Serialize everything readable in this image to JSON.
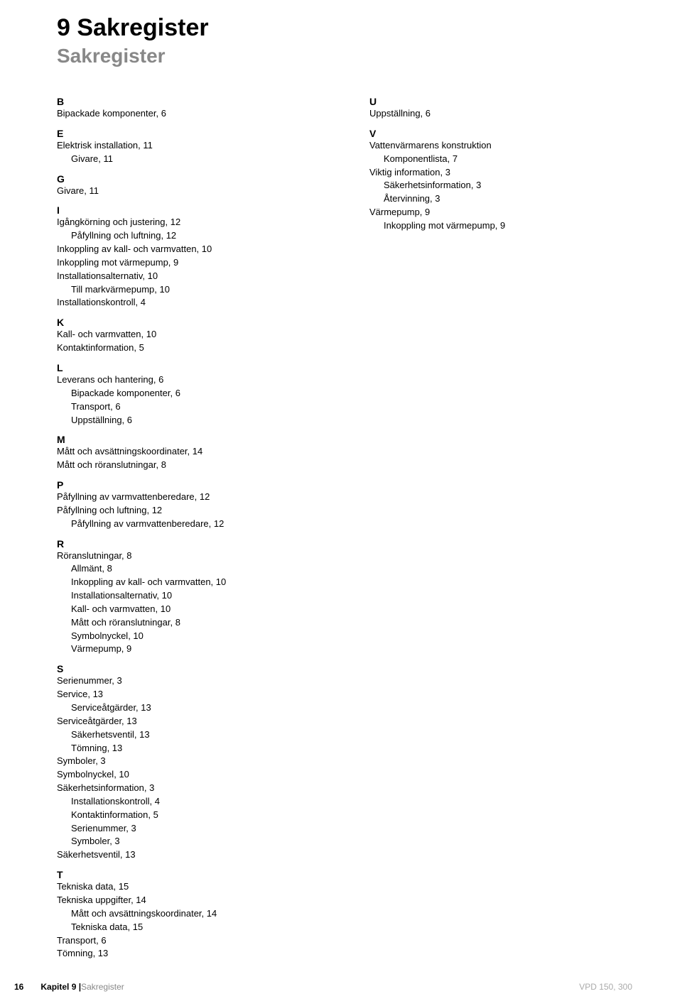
{
  "title": "9  Sakregister",
  "subtitle": "Sakregister",
  "footer": {
    "page_number": "16",
    "chapter": "Kapitel 9 | ",
    "section": "Sakregister",
    "model": "VPD 150, 300"
  },
  "columns": [
    {
      "groups": [
        {
          "letter": "B",
          "entries": [
            {
              "text": "Bipackade komponenter, 6"
            }
          ]
        },
        {
          "letter": "E",
          "entries": [
            {
              "text": "Elektrisk installation, 11"
            },
            {
              "text": "Givare, 11",
              "sub": true
            }
          ]
        },
        {
          "letter": "G",
          "entries": [
            {
              "text": "Givare, 11"
            }
          ]
        },
        {
          "letter": "I",
          "entries": [
            {
              "text": "Igångkörning och justering, 12"
            },
            {
              "text": "Påfyllning och luftning, 12",
              "sub": true
            },
            {
              "text": "Inkoppling av kall- och varmvatten, 10"
            },
            {
              "text": "Inkoppling mot värmepump, 9"
            },
            {
              "text": "Installationsalternativ, 10"
            },
            {
              "text": "Till markvärmepump, 10",
              "sub": true
            },
            {
              "text": "Installationskontroll, 4"
            }
          ]
        },
        {
          "letter": "K",
          "entries": [
            {
              "text": "Kall- och varmvatten, 10"
            },
            {
              "text": "Kontaktinformation, 5"
            }
          ]
        },
        {
          "letter": "L",
          "entries": [
            {
              "text": "Leverans och hantering, 6"
            },
            {
              "text": "Bipackade komponenter, 6",
              "sub": true
            },
            {
              "text": "Transport, 6",
              "sub": true
            },
            {
              "text": "Uppställning, 6",
              "sub": true
            }
          ]
        },
        {
          "letter": "M",
          "entries": [
            {
              "text": "Mått och avsättningskoordinater, 14"
            },
            {
              "text": "Mått och röranslutningar, 8"
            }
          ]
        },
        {
          "letter": "P",
          "entries": [
            {
              "text": "Påfyllning av varmvattenberedare, 12"
            },
            {
              "text": "Påfyllning och luftning, 12"
            },
            {
              "text": "Påfyllning av varmvattenberedare, 12",
              "sub": true
            }
          ]
        },
        {
          "letter": "R",
          "entries": [
            {
              "text": "Röranslutningar, 8"
            },
            {
              "text": "Allmänt, 8",
              "sub": true
            },
            {
              "text": "Inkoppling av kall- och varmvatten, 10",
              "sub": true
            },
            {
              "text": "Installationsalternativ, 10",
              "sub": true
            },
            {
              "text": "Kall- och varmvatten, 10",
              "sub": true
            },
            {
              "text": "Mått och röranslutningar, 8",
              "sub": true
            },
            {
              "text": "Symbolnyckel, 10",
              "sub": true
            },
            {
              "text": "Värmepump, 9",
              "sub": true
            }
          ]
        },
        {
          "letter": "S",
          "entries": [
            {
              "text": "Serienummer, 3"
            },
            {
              "text": "Service, 13"
            },
            {
              "text": "Serviceåtgärder, 13",
              "sub": true
            },
            {
              "text": "Serviceåtgärder, 13"
            },
            {
              "text": "Säkerhetsventil, 13",
              "sub": true
            },
            {
              "text": "Tömning, 13",
              "sub": true
            },
            {
              "text": "Symboler, 3"
            },
            {
              "text": "Symbolnyckel, 10"
            },
            {
              "text": "Säkerhetsinformation, 3"
            },
            {
              "text": "Installationskontroll, 4",
              "sub": true
            },
            {
              "text": "Kontaktinformation, 5",
              "sub": true
            },
            {
              "text": "Serienummer, 3",
              "sub": true
            },
            {
              "text": "Symboler, 3",
              "sub": true
            },
            {
              "text": "Säkerhetsventil, 13"
            }
          ]
        },
        {
          "letter": "T",
          "entries": [
            {
              "text": "Tekniska data, 15"
            },
            {
              "text": "Tekniska uppgifter, 14"
            },
            {
              "text": "Mått och avsättningskoordinater, 14",
              "sub": true
            },
            {
              "text": "Tekniska data, 15",
              "sub": true
            },
            {
              "text": "Transport, 6"
            },
            {
              "text": "Tömning, 13"
            }
          ]
        }
      ]
    },
    {
      "groups": [
        {
          "letter": "U",
          "entries": [
            {
              "text": "Uppställning, 6"
            }
          ]
        },
        {
          "letter": "V",
          "entries": [
            {
              "text": "Vattenvärmarens konstruktion"
            },
            {
              "text": "Komponentlista, 7",
              "sub": true
            },
            {
              "text": "Viktig information, 3"
            },
            {
              "text": "Säkerhetsinformation, 3",
              "sub": true
            },
            {
              "text": "Återvinning, 3",
              "sub": true
            },
            {
              "text": "Värmepump, 9"
            },
            {
              "text": "Inkoppling mot värmepump, 9",
              "sub": true
            }
          ]
        }
      ]
    }
  ]
}
